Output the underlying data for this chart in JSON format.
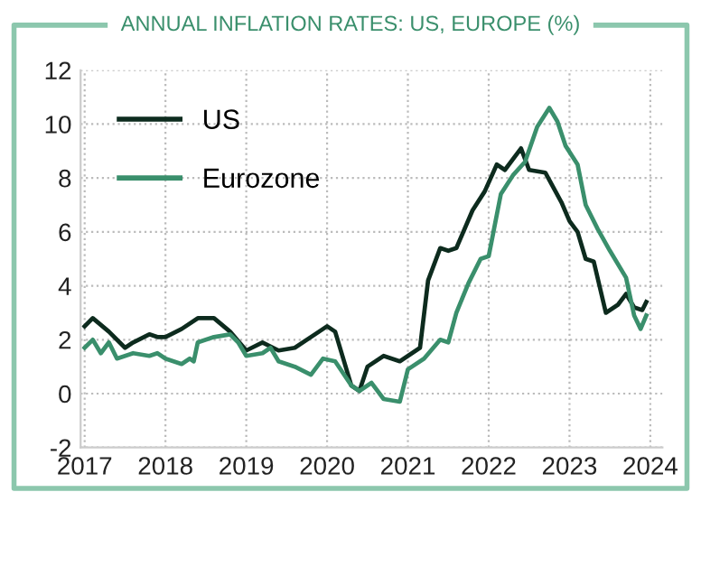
{
  "chart_data": {
    "type": "line",
    "title": "ANNUAL INFLATION RATES: US, EUROPE (%)",
    "xlim": [
      2016.95,
      2024.15
    ],
    "xticks": [
      2017,
      2018,
      2019,
      2020,
      2021,
      2022,
      2023,
      2024
    ],
    "ylim": [
      -2,
      12
    ],
    "yticks": [
      -2,
      0,
      2,
      4,
      6,
      8,
      10,
      12
    ],
    "grid": true,
    "legend": "top left",
    "marker": "none",
    "line_style": "solid",
    "series": [
      {
        "name": "US",
        "color": "#0d2b1e",
        "x": [
          2017.0,
          2017.1,
          2017.3,
          2017.5,
          2017.6,
          2017.8,
          2017.9,
          2018.0,
          2018.2,
          2018.4,
          2018.6,
          2018.8,
          2019.0,
          2019.2,
          2019.4,
          2019.6,
          2019.9,
          2020.0,
          2020.1,
          2020.3,
          2020.4,
          2020.5,
          2020.7,
          2020.9,
          2021.0,
          2021.15,
          2021.25,
          2021.4,
          2021.5,
          2021.6,
          2021.8,
          2021.95,
          2022.1,
          2022.2,
          2022.4,
          2022.5,
          2022.7,
          2022.9,
          2023.0,
          2023.1,
          2023.2,
          2023.3,
          2023.45,
          2023.6,
          2023.7,
          2023.8,
          2023.9,
          2023.95
        ],
        "values": [
          2.5,
          2.8,
          2.3,
          1.7,
          1.9,
          2.2,
          2.1,
          2.1,
          2.4,
          2.8,
          2.8,
          2.3,
          1.6,
          1.9,
          1.6,
          1.7,
          2.3,
          2.5,
          2.3,
          0.3,
          0.1,
          1.0,
          1.4,
          1.2,
          1.4,
          1.7,
          4.2,
          5.4,
          5.3,
          5.4,
          6.8,
          7.5,
          8.5,
          8.3,
          9.1,
          8.3,
          8.2,
          7.1,
          6.4,
          6.0,
          5.0,
          4.9,
          3.0,
          3.3,
          3.7,
          3.2,
          3.1,
          3.4
        ]
      },
      {
        "name": "Eurozone",
        "color": "#3a8f6c",
        "x": [
          2017.0,
          2017.1,
          2017.2,
          2017.3,
          2017.4,
          2017.6,
          2017.8,
          2017.9,
          2018.0,
          2018.2,
          2018.3,
          2018.35,
          2018.4,
          2018.5,
          2018.6,
          2018.8,
          2018.9,
          2019.0,
          2019.2,
          2019.3,
          2019.4,
          2019.6,
          2019.8,
          2019.95,
          2020.1,
          2020.3,
          2020.4,
          2020.55,
          2020.7,
          2020.9,
          2021.0,
          2021.2,
          2021.4,
          2021.5,
          2021.6,
          2021.75,
          2021.9,
          2022.0,
          2022.15,
          2022.3,
          2022.45,
          2022.6,
          2022.75,
          2022.85,
          2022.95,
          2023.1,
          2023.2,
          2023.35,
          2023.5,
          2023.7,
          2023.8,
          2023.88,
          2023.95
        ],
        "values": [
          1.7,
          2.0,
          1.5,
          1.9,
          1.3,
          1.5,
          1.4,
          1.5,
          1.3,
          1.1,
          1.3,
          1.2,
          1.9,
          2.0,
          2.1,
          2.2,
          1.9,
          1.4,
          1.5,
          1.7,
          1.2,
          1.0,
          0.7,
          1.3,
          1.2,
          0.3,
          0.1,
          0.4,
          -0.2,
          -0.3,
          0.9,
          1.3,
          2.0,
          1.9,
          3.0,
          4.1,
          5.0,
          5.1,
          7.4,
          8.1,
          8.6,
          9.9,
          10.6,
          10.1,
          9.2,
          8.5,
          7.0,
          6.1,
          5.3,
          4.3,
          2.9,
          2.4,
          2.9
        ]
      }
    ]
  }
}
